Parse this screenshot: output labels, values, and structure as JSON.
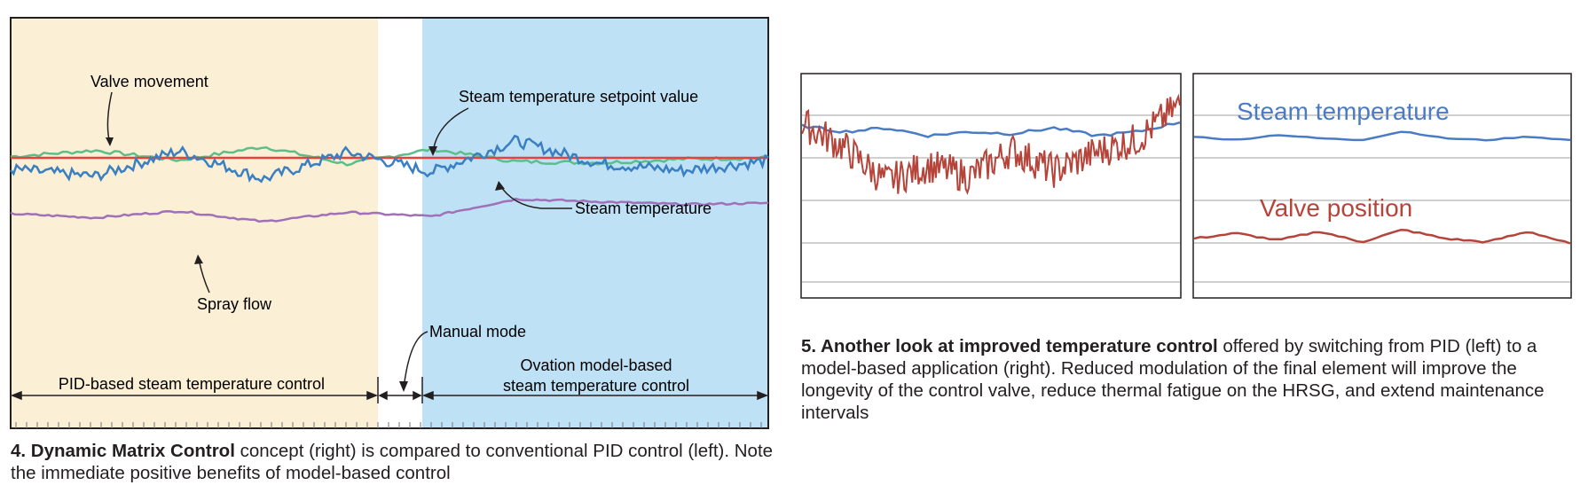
{
  "figure4": {
    "caption_title": "4. Dynamic Matrix Control",
    "caption_body": " concept (right) is compared to conventional PID control (left). Note the immediate positive benefits of model-based control",
    "annotations": {
      "valve_movement": "Valve movement",
      "setpoint": "Steam temperature setpoint value",
      "steam_temperature": "Steam temperature",
      "spray_flow": "Spray flow",
      "manual_mode": "Manual mode",
      "pid_region": "PID-based steam temperature control",
      "ovation_line1": "Ovation model-based",
      "ovation_line2": "steam temperature control"
    },
    "colors": {
      "pid_bg": "#fbefd5",
      "ovation_bg": "#bfe1f6",
      "setpoint": "#e8403a",
      "valve": "#5cbf8a",
      "steam": "#3a7fc1",
      "spray": "#a070b8"
    }
  },
  "figure5": {
    "caption_title": "5. Another look at improved temperature control",
    "caption_body": " offered by switching from PID (left) to a model-based application (right). Reduced modulation of the final element will improve the longevity of the control valve, reduce thermal fatigue on the HRSG, and extend maintenance intervals",
    "right_labels": {
      "steam_temperature": "Steam temperature",
      "valve_position": "Valve position"
    },
    "colors": {
      "steam": "#4a7bc4",
      "valve": "#b5443a",
      "grid": "#d0d0d0"
    }
  },
  "chart_data": [
    {
      "type": "line",
      "regions": [
        "PID-based steam temperature control",
        "Manual mode",
        "Ovation model-based steam temperature control"
      ],
      "series": [
        {
          "name": "Steam temperature setpoint value",
          "values": [
            0,
            0,
            0,
            0,
            0,
            0,
            0,
            0,
            0,
            0
          ]
        },
        {
          "name": "Valve movement",
          "values": [
            0.1,
            0.6,
            -0.2,
            0.9,
            -0.5,
            0.7,
            -0.3,
            -0.4,
            -0.1,
            0.0
          ]
        },
        {
          "name": "Steam temperature",
          "values": [
            -0.8,
            -1.3,
            0.5,
            -1.5,
            0.4,
            -1.0,
            1.2,
            -0.4,
            -0.9,
            -0.2
          ]
        },
        {
          "name": "Spray flow",
          "values": [
            -4.2,
            -4.5,
            -4.0,
            -4.8,
            -4.1,
            -4.4,
            -3.1,
            -3.3,
            -3.5,
            -3.4
          ]
        }
      ],
      "xlabel": "",
      "ylabel": ""
    },
    {
      "type": "line",
      "panels": [
        "left",
        "right"
      ],
      "series": [
        {
          "name": "Steam temperature",
          "panel": "right",
          "values": [
            1.8,
            1.6,
            1.9,
            1.7,
            1.6,
            2.1,
            1.7,
            1.6,
            1.8,
            1.6
          ]
        },
        {
          "name": "Valve position",
          "panel": "right",
          "values": [
            -0.2,
            0.1,
            -0.3,
            0.2,
            -0.4,
            0.3,
            -0.2,
            -0.4,
            0.2,
            -0.5
          ]
        },
        {
          "name": "",
          "panel": "left",
          "values": [
            1.5,
            1.2,
            1.4,
            1.0,
            1.2,
            1.1,
            1.4,
            1.0,
            1.2,
            1.7
          ]
        },
        {
          "name": "",
          "panel": "left",
          "values": [
            1.2,
            0.3,
            -1.0,
            -0.4,
            -0.8,
            0.2,
            -0.6,
            0.1,
            0.6,
            1.9
          ]
        }
      ],
      "xlabel": "",
      "ylabel": ""
    }
  ]
}
